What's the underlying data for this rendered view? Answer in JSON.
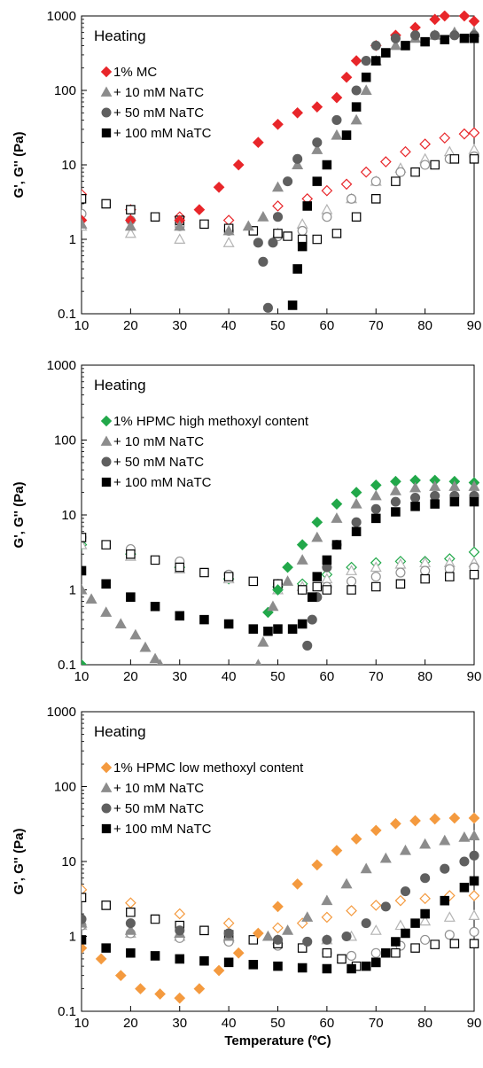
{
  "chart_data": [
    {
      "type": "scatter",
      "panel_title": "Heating",
      "xlabel": "",
      "ylabel": "G', G'' (Pa)",
      "xlim": [
        10,
        90
      ],
      "ylim": [
        0.1,
        1000
      ],
      "y_scale": "log",
      "x_ticks": [
        "10",
        "20",
        "30",
        "40",
        "50",
        "60",
        "70",
        "80",
        "90"
      ],
      "y_ticks": [
        "0.1",
        "1",
        "10",
        "100",
        "1000"
      ],
      "legend_position": "top-left",
      "series": [
        {
          "name": "1% MC",
          "marker": "diamond",
          "color": "#e8262a",
          "filled": true,
          "x": [
            10,
            20,
            30,
            34,
            38,
            42,
            46,
            50,
            54,
            58,
            62,
            64,
            66,
            70,
            74,
            78,
            82,
            84,
            88,
            90
          ],
          "y": [
            1.8,
            1.8,
            1.8,
            2.5,
            5,
            10,
            20,
            35,
            50,
            60,
            80,
            150,
            250,
            400,
            550,
            700,
            900,
            1000,
            1000,
            850
          ]
        },
        {
          "name": "1% MC G''",
          "marker": "diamond",
          "color": "#e8262a",
          "filled": false,
          "x": [
            10,
            20,
            30,
            40,
            50,
            56,
            60,
            64,
            68,
            72,
            76,
            80,
            84,
            88,
            90
          ],
          "y": [
            4,
            2.5,
            2,
            1.8,
            2.8,
            3.5,
            4.5,
            5.5,
            8,
            11,
            15,
            19,
            23,
            26,
            27
          ]
        },
        {
          "name": "+ 10 mM NaTC",
          "marker": "triangle",
          "color": "#8c8c8c",
          "filled": true,
          "x": [
            10,
            20,
            30,
            40,
            44,
            47,
            50,
            54,
            58,
            62,
            66,
            68,
            70,
            74,
            78,
            82,
            86,
            90
          ],
          "y": [
            1.6,
            1.5,
            1.5,
            1.3,
            1.5,
            2,
            5,
            10,
            16,
            25,
            40,
            100,
            250,
            400,
            500,
            550,
            600,
            600
          ]
        },
        {
          "name": "+ 10 mM NaTC G''",
          "marker": "triangle",
          "color": "#b4b4b4",
          "filled": false,
          "x": [
            10,
            20,
            30,
            40,
            50,
            55,
            60,
            65,
            70,
            75,
            80,
            85,
            90
          ],
          "y": [
            1.5,
            1.2,
            1,
            0.9,
            1.2,
            1.6,
            2.5,
            3.5,
            6,
            9,
            12,
            15,
            16
          ]
        },
        {
          "name": "+ 50 mM NaTC",
          "marker": "circle",
          "color": "#5f5f5f",
          "filled": true,
          "x": [
            46,
            47,
            48,
            49,
            50,
            52,
            54,
            58,
            62,
            66,
            68,
            70,
            74,
            78,
            82,
            86,
            90
          ],
          "y": [
            0.9,
            0.5,
            0.12,
            0.9,
            2,
            6,
            12,
            20,
            40,
            100,
            250,
            400,
            500,
            550,
            550,
            550,
            550
          ]
        },
        {
          "name": "+ 50 mM NaTC G''",
          "marker": "circle",
          "color": "#909090",
          "filled": false,
          "x": [
            10,
            20,
            30,
            40,
            50,
            55,
            60,
            65,
            70,
            75,
            80,
            85,
            90
          ],
          "y": [
            2.2,
            1.8,
            1.5,
            1.3,
            1.1,
            1.3,
            2,
            3.5,
            6,
            8,
            10,
            12,
            13
          ]
        },
        {
          "name": "+ 100 mM NaTC",
          "marker": "square",
          "color": "#000000",
          "filled": true,
          "x": [
            53,
            54,
            55,
            56,
            58,
            60,
            64,
            66,
            68,
            70,
            72,
            76,
            80,
            84,
            88,
            90
          ],
          "y": [
            0.13,
            0.4,
            0.8,
            2.8,
            6,
            10,
            25,
            60,
            150,
            250,
            320,
            400,
            450,
            480,
            500,
            500
          ]
        },
        {
          "name": "+ 100 mM NaTC G''",
          "marker": "square",
          "color": "#000000",
          "filled": false,
          "x": [
            10,
            15,
            20,
            25,
            30,
            35,
            40,
            45,
            50,
            52,
            55,
            58,
            62,
            66,
            70,
            74,
            78,
            82,
            86,
            90
          ],
          "y": [
            3.5,
            3,
            2.5,
            2,
            1.8,
            1.6,
            1.4,
            1.3,
            1.2,
            1.1,
            1,
            1,
            1.2,
            2,
            3.5,
            6,
            8,
            10,
            12,
            12
          ]
        }
      ]
    },
    {
      "type": "scatter",
      "panel_title": "Heating",
      "xlabel": "",
      "ylabel": "G', G'' (Pa)",
      "xlim": [
        10,
        90
      ],
      "ylim": [
        0.1,
        1000
      ],
      "y_scale": "log",
      "x_ticks": [
        "10",
        "20",
        "30",
        "40",
        "50",
        "60",
        "70",
        "80",
        "90"
      ],
      "y_ticks": [
        "0.1",
        "1",
        "10",
        "100",
        "1000"
      ],
      "legend_position": "top-left",
      "series": [
        {
          "name": "1% HPMC high methoxyl content",
          "marker": "diamond",
          "color": "#22a84a",
          "filled": true,
          "x": [
            10,
            48,
            50,
            52,
            55,
            58,
            62,
            66,
            70,
            74,
            78,
            82,
            86,
            90
          ],
          "y": [
            0.1,
            0.5,
            1,
            2,
            4,
            8,
            14,
            20,
            25,
            28,
            29,
            29,
            28,
            27
          ]
        },
        {
          "name": "1% HPMC high methoxyl content G''",
          "marker": "diamond",
          "color": "#22a84a",
          "filled": false,
          "x": [
            10,
            20,
            30,
            40,
            50,
            55,
            60,
            65,
            70,
            75,
            80,
            85,
            90
          ],
          "y": [
            4,
            3,
            2,
            1.4,
            1.1,
            1.2,
            1.6,
            2,
            2.3,
            2.4,
            2.4,
            2.6,
            3.2
          ]
        },
        {
          "name": "+ 10 mM NaTC",
          "marker": "triangle",
          "color": "#8c8c8c",
          "filled": true,
          "x": [
            10,
            12,
            15,
            18,
            21,
            23,
            25,
            26,
            46,
            47,
            49,
            52,
            55,
            58,
            62,
            66,
            70,
            74,
            78,
            82,
            86,
            90
          ],
          "y": [
            1,
            0.75,
            0.5,
            0.35,
            0.25,
            0.17,
            0.12,
            0.1,
            0.1,
            0.2,
            0.6,
            1.3,
            2.5,
            5,
            9,
            14,
            18,
            21,
            23,
            24,
            24,
            24
          ]
        },
        {
          "name": "+ 10 mM NaTC G''",
          "marker": "triangle",
          "color": "#b4b4b4",
          "filled": false,
          "x": [
            10,
            20,
            30,
            40,
            50,
            55,
            60,
            65,
            70,
            75,
            80,
            85,
            90
          ],
          "y": [
            4,
            2.8,
            1.9,
            1.4,
            1,
            1.1,
            1.4,
            1.8,
            2,
            2.2,
            2.3,
            2.3,
            2.3
          ]
        },
        {
          "name": "+ 50 mM NaTC",
          "marker": "circle",
          "color": "#5f5f5f",
          "filled": true,
          "x": [
            56,
            57,
            58,
            60,
            62,
            66,
            70,
            74,
            78,
            82,
            86,
            90
          ],
          "y": [
            0.18,
            0.4,
            0.8,
            2,
            4,
            8,
            12,
            15,
            17,
            18,
            18,
            18
          ]
        },
        {
          "name": "+ 50 mM NaTC G''",
          "marker": "circle",
          "color": "#909090",
          "filled": false,
          "x": [
            10,
            20,
            30,
            40,
            50,
            55,
            60,
            65,
            70,
            75,
            80,
            85,
            90
          ],
          "y": [
            5,
            3.5,
            2.4,
            1.6,
            1.2,
            1,
            1.1,
            1.3,
            1.5,
            1.7,
            1.8,
            1.9,
            2
          ]
        },
        {
          "name": "+ 100 mM NaTC",
          "marker": "square",
          "color": "#000000",
          "filled": true,
          "x": [
            10,
            15,
            20,
            25,
            30,
            35,
            40,
            45,
            48,
            50,
            53,
            55,
            57,
            58,
            60,
            62,
            66,
            70,
            74,
            78,
            82,
            86,
            90
          ],
          "y": [
            1.8,
            1.2,
            0.8,
            0.6,
            0.45,
            0.4,
            0.35,
            0.3,
            0.28,
            0.3,
            0.3,
            0.35,
            0.8,
            1.5,
            2.5,
            4,
            6,
            9,
            11,
            13,
            14,
            15,
            15
          ]
        },
        {
          "name": "+ 100 mM NaTC G''",
          "marker": "square",
          "color": "#000000",
          "filled": false,
          "x": [
            10,
            15,
            20,
            25,
            30,
            35,
            40,
            45,
            50,
            55,
            58,
            60,
            65,
            70,
            75,
            80,
            85,
            90
          ],
          "y": [
            5,
            4,
            3,
            2.5,
            2,
            1.7,
            1.5,
            1.3,
            1.2,
            1,
            1.1,
            1,
            1,
            1.1,
            1.2,
            1.4,
            1.5,
            1.6
          ]
        }
      ]
    },
    {
      "type": "scatter",
      "panel_title": "Heating",
      "xlabel": "Temperature (ºC)",
      "ylabel": "G', G'' (Pa)",
      "xlim": [
        10,
        90
      ],
      "ylim": [
        0.1,
        1000
      ],
      "y_scale": "log",
      "x_ticks": [
        "10",
        "20",
        "30",
        "40",
        "50",
        "60",
        "70",
        "80",
        "90"
      ],
      "y_ticks": [
        "0.1",
        "1",
        "10",
        "100",
        "1000"
      ],
      "legend_position": "top-left",
      "series": [
        {
          "name": "1% HPMC low methoxyl content",
          "marker": "diamond",
          "color": "#f49a3f",
          "filled": true,
          "x": [
            10,
            14,
            18,
            22,
            26,
            30,
            34,
            38,
            42,
            46,
            50,
            54,
            58,
            62,
            66,
            70,
            74,
            78,
            82,
            86,
            90
          ],
          "y": [
            0.7,
            0.5,
            0.3,
            0.2,
            0.17,
            0.15,
            0.2,
            0.35,
            0.6,
            1.1,
            2.5,
            5,
            9,
            14,
            20,
            26,
            32,
            35,
            37,
            38,
            38
          ]
        },
        {
          "name": "1% HPMC low methoxyl content G''",
          "marker": "diamond",
          "color": "#f49a3f",
          "filled": false,
          "x": [
            10,
            20,
            30,
            40,
            50,
            55,
            60,
            65,
            70,
            75,
            80,
            85,
            90
          ],
          "y": [
            4.2,
            2.8,
            2,
            1.5,
            1.3,
            1.5,
            1.8,
            2.2,
            2.6,
            3,
            3.2,
            3.5,
            3.5
          ]
        },
        {
          "name": "+ 10 mM NaTC",
          "marker": "triangle",
          "color": "#8c8c8c",
          "filled": true,
          "x": [
            10,
            20,
            30,
            40,
            48,
            52,
            56,
            60,
            64,
            68,
            72,
            76,
            80,
            84,
            88,
            90
          ],
          "y": [
            1.5,
            1.2,
            1.1,
            1,
            1,
            1.2,
            1.8,
            3,
            5,
            8,
            11,
            14,
            17,
            19,
            21,
            22
          ]
        },
        {
          "name": "+ 10 mM NaTC G''",
          "marker": "triangle",
          "color": "#b4b4b4",
          "filled": false,
          "x": [
            10,
            20,
            30,
            40,
            50,
            60,
            65,
            70,
            75,
            80,
            85,
            90
          ],
          "y": [
            1.4,
            1.1,
            1,
            0.95,
            0.9,
            0.9,
            1,
            1.2,
            1.4,
            1.6,
            1.8,
            1.9
          ]
        },
        {
          "name": "+ 50 mM NaTC",
          "marker": "circle",
          "color": "#5f5f5f",
          "filled": true,
          "x": [
            10,
            20,
            30,
            40,
            50,
            56,
            60,
            64,
            68,
            72,
            76,
            80,
            84,
            88,
            90
          ],
          "y": [
            1.7,
            1.5,
            1.2,
            1.1,
            0.9,
            0.85,
            0.9,
            1,
            1.5,
            2.5,
            4,
            6,
            8,
            10,
            12
          ]
        },
        {
          "name": "+ 50 mM NaTC G''",
          "marker": "circle",
          "color": "#909090",
          "filled": false,
          "x": [
            10,
            20,
            30,
            40,
            50,
            60,
            65,
            70,
            75,
            80,
            85,
            90
          ],
          "y": [
            1.4,
            1.1,
            0.95,
            0.85,
            0.75,
            0.6,
            0.55,
            0.6,
            0.75,
            0.9,
            1.05,
            1.15
          ]
        },
        {
          "name": "+ 100 mM NaTC",
          "marker": "square",
          "color": "#000000",
          "filled": true,
          "x": [
            10,
            15,
            20,
            25,
            30,
            35,
            40,
            45,
            50,
            55,
            60,
            65,
            68,
            70,
            72,
            74,
            76,
            78,
            80,
            84,
            88,
            90
          ],
          "y": [
            0.9,
            0.7,
            0.6,
            0.55,
            0.5,
            0.47,
            0.45,
            0.42,
            0.4,
            0.38,
            0.37,
            0.37,
            0.4,
            0.45,
            0.6,
            0.85,
            1.1,
            1.5,
            2,
            3,
            4.5,
            5.5
          ]
        },
        {
          "name": "+ 100 mM NaTC G''",
          "marker": "square",
          "color": "#000000",
          "filled": false,
          "x": [
            10,
            15,
            20,
            25,
            30,
            35,
            40,
            45,
            50,
            55,
            60,
            63,
            66,
            70,
            74,
            78,
            82,
            86,
            90
          ],
          "y": [
            3.3,
            2.6,
            2.1,
            1.7,
            1.4,
            1.2,
            1.05,
            0.9,
            0.8,
            0.7,
            0.6,
            0.5,
            0.4,
            0.45,
            0.6,
            0.7,
            0.78,
            0.8,
            0.8
          ]
        }
      ]
    }
  ]
}
